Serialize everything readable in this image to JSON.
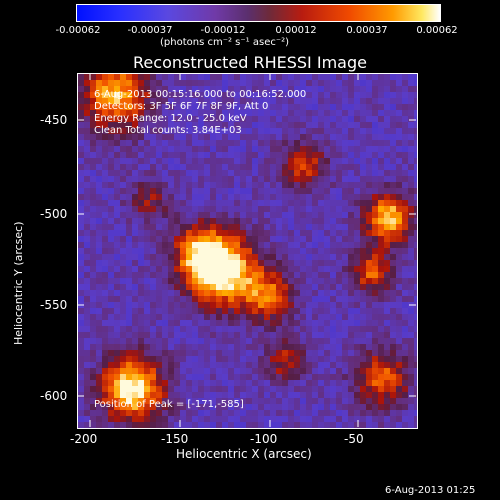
{
  "colorbar": {
    "tick_labels": [
      "-0.00062",
      "-0.00037",
      "-0.00012",
      "0.00012",
      "0.00037",
      "0.00062"
    ],
    "unit_label": "(photons cm⁻² s⁻¹ asec⁻²)"
  },
  "title": "Reconstructed RHESSI Image",
  "info": {
    "time": "6-Aug-2013 00:15:16.000 to 00:16:52.000",
    "detectors": "Detectors: 3F 5F 6F 7F 8F 9F, Att 0",
    "energy": "Energy Range: 12.0 - 25.0 keV",
    "clean": "Clean    Total counts: 3.84E+03"
  },
  "peak": "Position of Peak = [-171,-585]",
  "axes": {
    "xlabel": "Heliocentric X (arcsec)",
    "ylabel": "Heliocentric Y (arcsec)",
    "xticks": [
      "-200",
      "-150",
      "-100",
      "-50"
    ],
    "yticks": [
      "-450",
      "-500",
      "-550",
      "-600"
    ]
  },
  "timestamp": "6-Aug-2013 01:25",
  "colors": {
    "background": "#000000",
    "text": "#ffffff"
  }
}
